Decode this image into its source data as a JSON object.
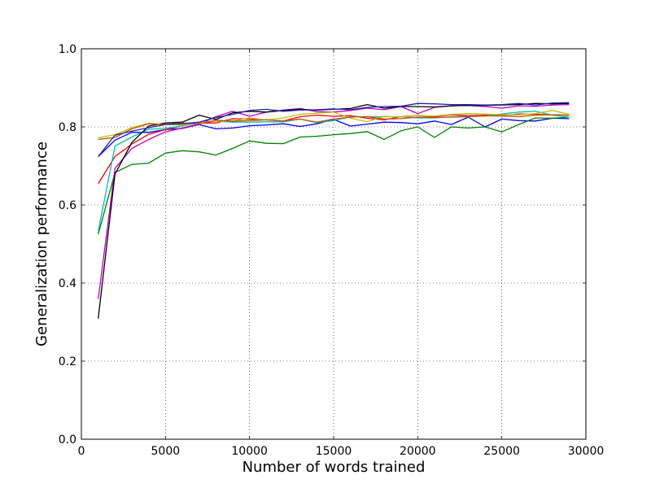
{
  "chart_data": {
    "type": "line",
    "title": "",
    "xlabel": "Number of words trained",
    "ylabel": "Generalization performance",
    "xlim": [
      0,
      30000
    ],
    "ylim": [
      0.0,
      1.0
    ],
    "grid": true,
    "xticks": [
      0,
      5000,
      10000,
      15000,
      20000,
      25000,
      30000
    ],
    "xtick_labels": [
      "0",
      "5000",
      "10000",
      "15000",
      "20000",
      "25000",
      "30000"
    ],
    "yticks": [
      0.0,
      0.2,
      0.4,
      0.6,
      0.8,
      1.0
    ],
    "ytick_labels": [
      "0.0",
      "0.2",
      "0.4",
      "0.6",
      "0.8",
      "1.0"
    ],
    "x": [
      1000,
      2000,
      3000,
      4000,
      5000,
      6000,
      7000,
      8000,
      9000,
      10000,
      11000,
      12000,
      13000,
      14000,
      15000,
      16000,
      17000,
      18000,
      19000,
      20000,
      21000,
      22000,
      23000,
      24000,
      25000,
      26000,
      27000,
      28000,
      29000
    ],
    "series": [
      {
        "color": "#0000ff",
        "values": [
          0.724,
          0.766,
          0.786,
          0.786,
          0.793,
          0.796,
          0.806,
          0.795,
          0.797,
          0.803,
          0.805,
          0.808,
          0.801,
          0.808,
          0.819,
          0.802,
          0.807,
          0.812,
          0.811,
          0.808,
          0.815,
          0.806,
          0.825,
          0.8,
          0.82,
          0.816,
          0.815,
          0.822,
          0.821
        ]
      },
      {
        "color": "#008000",
        "values": [
          0.525,
          0.683,
          0.704,
          0.707,
          0.733,
          0.739,
          0.736,
          0.728,
          0.745,
          0.764,
          0.758,
          0.757,
          0.774,
          0.776,
          0.78,
          0.783,
          0.788,
          0.768,
          0.79,
          0.8,
          0.773,
          0.8,
          0.797,
          0.8,
          0.787,
          0.806,
          0.823,
          0.822,
          0.825
        ]
      },
      {
        "color": "#ff0000",
        "values": [
          0.655,
          0.724,
          0.756,
          0.781,
          0.793,
          0.803,
          0.81,
          0.81,
          0.821,
          0.82,
          0.818,
          0.815,
          0.826,
          0.83,
          0.827,
          0.829,
          0.822,
          0.818,
          0.826,
          0.829,
          0.826,
          0.831,
          0.829,
          0.83,
          0.829,
          0.833,
          0.832,
          0.831,
          0.83
        ]
      },
      {
        "color": "#00bfbf",
        "values": [
          0.533,
          0.751,
          0.774,
          0.794,
          0.796,
          0.803,
          0.81,
          0.815,
          0.812,
          0.812,
          0.813,
          0.813,
          0.82,
          0.811,
          0.816,
          0.826,
          0.826,
          0.826,
          0.826,
          0.823,
          0.823,
          0.826,
          0.827,
          0.828,
          0.833,
          0.838,
          0.84,
          0.83,
          0.825
        ]
      },
      {
        "color": "#bf00bf",
        "values": [
          0.359,
          0.694,
          0.745,
          0.768,
          0.787,
          0.797,
          0.807,
          0.826,
          0.84,
          0.827,
          0.838,
          0.843,
          0.847,
          0.839,
          0.838,
          0.842,
          0.848,
          0.844,
          0.852,
          0.834,
          0.85,
          0.854,
          0.855,
          0.852,
          0.848,
          0.854,
          0.853,
          0.856,
          0.857
        ]
      },
      {
        "color": "#bfbf00",
        "values": [
          0.772,
          0.78,
          0.798,
          0.809,
          0.806,
          0.805,
          0.811,
          0.815,
          0.815,
          0.823,
          0.818,
          0.823,
          0.832,
          0.835,
          0.838,
          0.822,
          0.813,
          0.827,
          0.825,
          0.829,
          0.828,
          0.832,
          0.834,
          0.833,
          0.831,
          0.831,
          0.834,
          0.842,
          0.832
        ]
      },
      {
        "color": "#000000",
        "values": [
          0.309,
          0.679,
          0.76,
          0.802,
          0.81,
          0.812,
          0.83,
          0.819,
          0.836,
          0.84,
          0.838,
          0.842,
          0.845,
          0.843,
          0.845,
          0.847,
          0.857,
          0.848,
          0.852,
          0.852,
          0.851,
          0.854,
          0.855,
          0.855,
          0.856,
          0.857,
          0.86,
          0.859,
          0.86
        ]
      },
      {
        "color": "#c85000",
        "values": [
          0.768,
          0.773,
          0.795,
          0.808,
          0.806,
          0.81,
          0.808,
          0.817,
          0.815,
          0.816,
          0.818,
          0.815,
          0.82,
          0.812,
          0.82,
          0.825,
          0.826,
          0.82,
          0.821,
          0.825,
          0.824,
          0.825,
          0.826,
          0.828,
          0.828,
          0.826,
          0.83,
          0.831,
          0.83
        ]
      },
      {
        "color": "#1f1fb4",
        "values": [
          0.724,
          0.779,
          0.789,
          0.798,
          0.806,
          0.808,
          0.812,
          0.824,
          0.832,
          0.842,
          0.845,
          0.84,
          0.843,
          0.844,
          0.846,
          0.844,
          0.85,
          0.852,
          0.853,
          0.86,
          0.859,
          0.857,
          0.857,
          0.856,
          0.857,
          0.86,
          0.856,
          0.861,
          0.862
        ]
      }
    ]
  }
}
